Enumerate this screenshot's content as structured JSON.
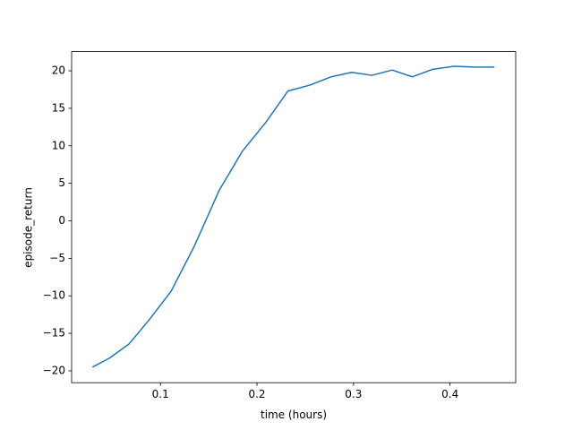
{
  "chart_data": {
    "type": "line",
    "x_label": "time (hours)",
    "y_label": "episode_return",
    "x": [
      0.0296,
      0.0472,
      0.0676,
      0.0889,
      0.111,
      0.135,
      0.161,
      0.185,
      0.209,
      0.232,
      0.255,
      0.277,
      0.298,
      0.319,
      0.34,
      0.361,
      0.382,
      0.404,
      0.425,
      0.446
    ],
    "series": [
      {
        "color": "#1f77b4",
        "values": [
          -19.5,
          -18.3,
          -16.4,
          -13.1,
          -9.4,
          -3.4,
          4.1,
          9.3,
          13.1,
          17.3,
          18.1,
          19.2,
          19.8,
          19.4,
          20.1,
          19.2,
          20.2,
          20.6,
          20.5,
          20.5
        ]
      }
    ],
    "xlim": [
      0.008,
      0.468
    ],
    "xticks": [
      0.1,
      0.2,
      0.3,
      0.4
    ],
    "ylim": [
      -21.58,
      22.56
    ],
    "yticks": [
      {
        "value": -20,
        "label": "−20"
      },
      {
        "value": -15,
        "label": "−15"
      },
      {
        "value": -10,
        "label": "−10"
      },
      {
        "value": -5,
        "label": "−5"
      },
      0,
      5,
      10,
      15,
      20
    ],
    "grid": false
  }
}
